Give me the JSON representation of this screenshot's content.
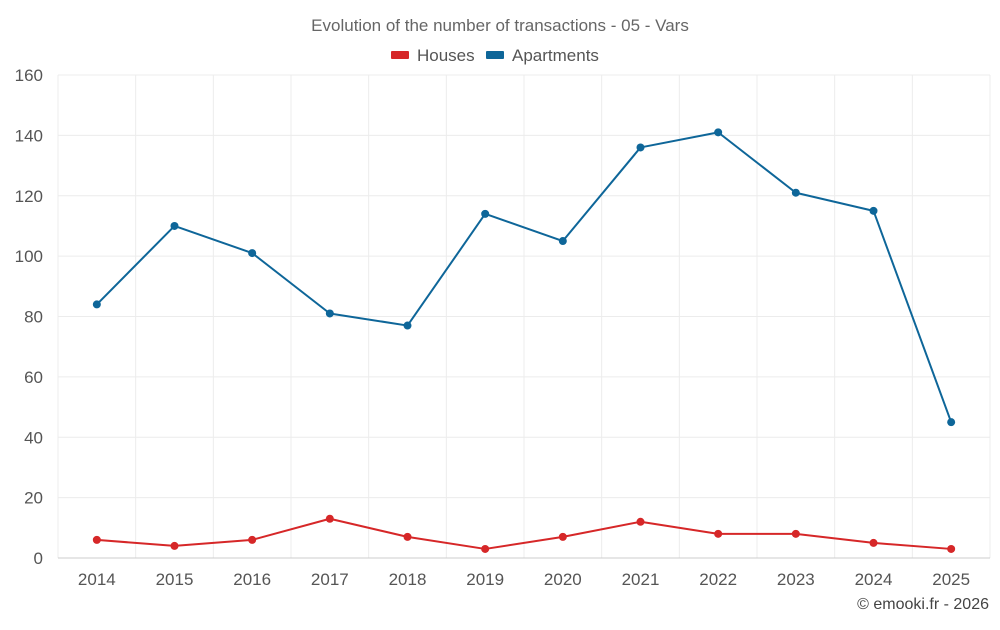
{
  "chart_data": {
    "type": "line",
    "title": "Evolution of the number of transactions - 05 - Vars",
    "xlabel": "",
    "ylabel": "",
    "categories": [
      "2014",
      "2015",
      "2016",
      "2017",
      "2018",
      "2019",
      "2020",
      "2021",
      "2022",
      "2023",
      "2024",
      "2025"
    ],
    "series": [
      {
        "name": "Houses",
        "color": "#d62728",
        "values": [
          6,
          4,
          6,
          13,
          7,
          3,
          7,
          12,
          8,
          8,
          5,
          3
        ]
      },
      {
        "name": "Apartments",
        "color": "#0e6699",
        "values": [
          84,
          110,
          101,
          81,
          77,
          114,
          105,
          136,
          141,
          121,
          115,
          45
        ]
      }
    ],
    "ylim": [
      0,
      160
    ],
    "yticks": [
      "0",
      "20",
      "40",
      "60",
      "80",
      "100",
      "120",
      "140",
      "160"
    ],
    "grid": true,
    "legend_position": "top-center"
  },
  "footer": {
    "credit": "© emooki.fr - 2026"
  }
}
